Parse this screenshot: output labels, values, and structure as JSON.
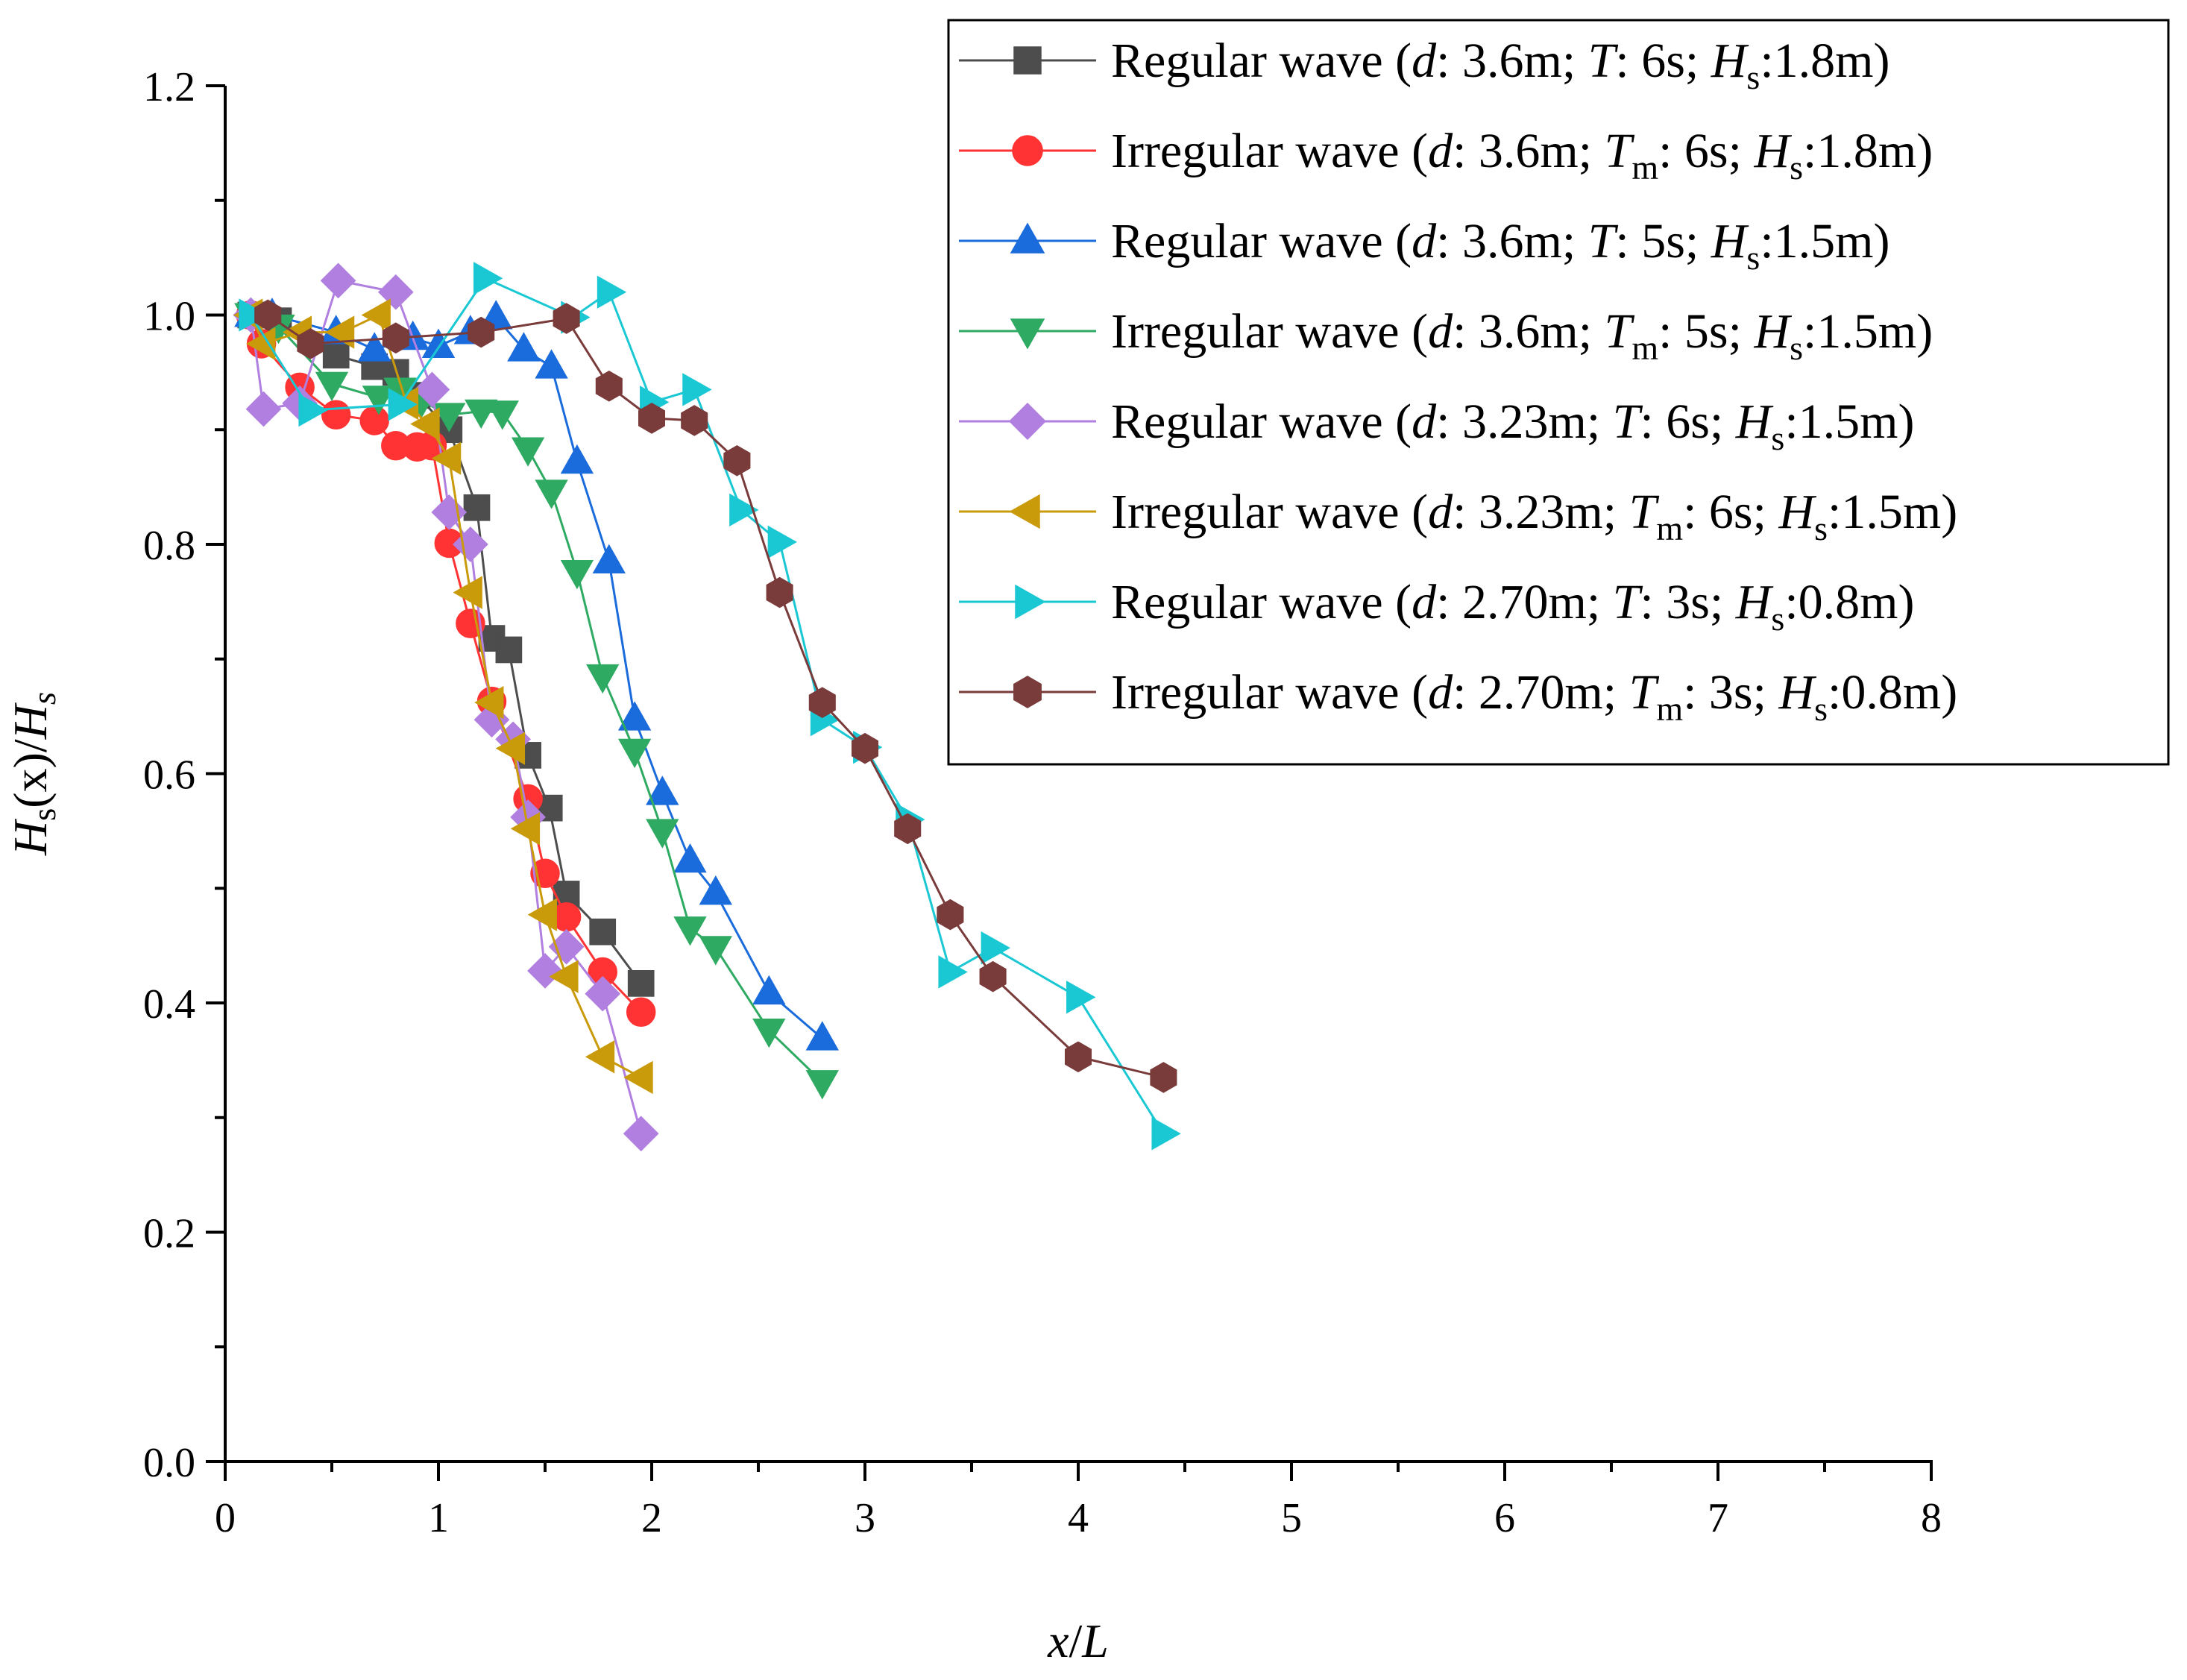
{
  "chart_data": {
    "type": "line",
    "title": "",
    "xlabel": {
      "main": "x",
      "sep": "/",
      "tail": "L"
    },
    "ylabel": {
      "h1": "H",
      "s1": "s",
      "mid": "(x)/",
      "h2": "H",
      "s2": "s"
    },
    "xlim": [
      0,
      8
    ],
    "ylim": [
      0,
      1.2
    ],
    "x_ticks": [
      0,
      1,
      2,
      3,
      4,
      5,
      6,
      7,
      8
    ],
    "x_tick_labels": [
      "0",
      "1",
      "2",
      "3",
      "4",
      "5",
      "6",
      "7",
      "8"
    ],
    "y_ticks": [
      0.0,
      0.2,
      0.4,
      0.6,
      0.8,
      1.0,
      1.2
    ],
    "y_tick_labels": [
      "0.0",
      "0.2",
      "0.4",
      "0.6",
      "0.8",
      "1.0",
      "1.2"
    ],
    "grid": false,
    "legend_position": "top-right",
    "series": [
      {
        "name": "Regular wave (d: 3.6m; T: 6s; Hs:1.8m)",
        "legend": {
          "a": "Regular wave (",
          "d": "d",
          "b": ": 3.6m; ",
          "t": "T",
          "tsub": "",
          "c": ": 6s; ",
          "h": "H",
          "hsub": "s",
          "e": ":1.8m)"
        },
        "color": "#4d4d4d",
        "marker": "square",
        "x": [
          0.12,
          0.25,
          0.52,
          0.7,
          0.8,
          0.9,
          1.05,
          1.18,
          1.25,
          1.33,
          1.42,
          1.52,
          1.6,
          1.77,
          1.95
        ],
        "y": [
          1.0,
          0.995,
          0.965,
          0.955,
          0.95,
          0.93,
          0.9,
          0.832,
          0.718,
          0.708,
          0.616,
          0.57,
          0.495,
          0.462,
          0.417
        ]
      },
      {
        "name": "Irregular wave (d: 3.6m; Tm: 6s; Hs:1.8m)",
        "legend": {
          "a": "Irregular wave (",
          "d": "d",
          "b": ": 3.6m; ",
          "t": "T",
          "tsub": "m",
          "c": ": 6s; ",
          "h": "H",
          "hsub": "s",
          "e": ":1.8m)"
        },
        "color": "#ff3333",
        "marker": "circle",
        "x": [
          0.12,
          0.17,
          0.35,
          0.52,
          0.7,
          0.8,
          0.9,
          0.97,
          1.05,
          1.15,
          1.25,
          1.42,
          1.5,
          1.6,
          1.77,
          1.95
        ],
        "y": [
          1.0,
          0.975,
          0.937,
          0.913,
          0.908,
          0.886,
          0.885,
          0.886,
          0.801,
          0.731,
          0.663,
          0.578,
          0.513,
          0.475,
          0.427,
          0.392
        ]
      },
      {
        "name": "Regular wave (d: 3.6m; T: 5s; Hs:1.5m)",
        "legend": {
          "a": "Regular wave (",
          "d": "d",
          "b": ": 3.6m; ",
          "t": "T",
          "tsub": "",
          "c": ": 5s; ",
          "h": "H",
          "hsub": "s",
          "e": ":1.5m)"
        },
        "color": "#1a6bdb",
        "marker": "triangle-up",
        "x": [
          0.12,
          0.22,
          0.52,
          0.7,
          0.88,
          1.0,
          1.15,
          1.27,
          1.4,
          1.53,
          1.65,
          1.8,
          1.92,
          2.05,
          2.18,
          2.3,
          2.55,
          2.8
        ],
        "y": [
          1.0,
          1.0,
          0.985,
          0.97,
          0.98,
          0.973,
          0.985,
          0.998,
          0.97,
          0.955,
          0.872,
          0.785,
          0.648,
          0.583,
          0.524,
          0.496,
          0.409,
          0.369
        ]
      },
      {
        "name": "Irregular wave (d: 3.6m; Tm: 5s; Hs:1.5m)",
        "legend": {
          "a": "Irregular wave (",
          "d": "d",
          "b": ": 3.6m; ",
          "t": "T",
          "tsub": "m",
          "c": ": 5s; ",
          "h": "H",
          "hsub": "s",
          "e": ":1.5m)"
        },
        "color": "#2eaa62",
        "marker": "triangle-down",
        "x": [
          0.12,
          0.25,
          0.5,
          0.72,
          0.82,
          0.92,
          1.05,
          1.2,
          1.3,
          1.42,
          1.53,
          1.65,
          1.77,
          1.92,
          2.05,
          2.18,
          2.3,
          2.55,
          2.8
        ],
        "y": [
          1.0,
          0.99,
          0.94,
          0.928,
          0.935,
          0.925,
          0.913,
          0.916,
          0.915,
          0.883,
          0.846,
          0.776,
          0.685,
          0.62,
          0.55,
          0.465,
          0.448,
          0.376,
          0.331
        ]
      },
      {
        "name": "Regular wave (d: 3.23m; T: 6s; Hs:1.5m)",
        "legend": {
          "a": "Regular wave (",
          "d": "d",
          "b": ": 3.23m; ",
          "t": "T",
          "tsub": "",
          "c": ": 6s; ",
          "h": "H",
          "hsub": "s",
          "e": ":1.5m)"
        },
        "color": "#b07fe0",
        "marker": "diamond",
        "x": [
          0.12,
          0.18,
          0.35,
          0.53,
          0.8,
          0.97,
          1.05,
          1.15,
          1.25,
          1.35,
          1.42,
          1.5,
          1.6,
          1.77,
          1.95
        ],
        "y": [
          1.0,
          0.918,
          0.923,
          1.03,
          1.02,
          0.935,
          0.828,
          0.8,
          0.647,
          0.63,
          0.562,
          0.428,
          0.449,
          0.408,
          0.286
        ]
      },
      {
        "name": "Irregular wave (d: 3.23m; Tm: 6s; Hs:1.5m)",
        "legend": {
          "a": "Irregular wave (",
          "d": "d",
          "b": ": 3.23m; ",
          "t": "T",
          "tsub": "m",
          "c": ": 6s; ",
          "h": "H",
          "hsub": "s",
          "e": ":1.5m)"
        },
        "color": "#c99a0a",
        "marker": "triangle-left",
        "x": [
          0.12,
          0.18,
          0.35,
          0.55,
          0.72,
          0.85,
          0.95,
          1.05,
          1.15,
          1.25,
          1.35,
          1.42,
          1.5,
          1.6,
          1.77,
          1.95
        ],
        "y": [
          1.0,
          0.975,
          0.985,
          0.985,
          1.0,
          0.923,
          0.905,
          0.875,
          0.758,
          0.662,
          0.622,
          0.552,
          0.477,
          0.423,
          0.353,
          0.335
        ]
      },
      {
        "name": "Regular wave (d: 2.70m; T: 3s; Hs:0.8m)",
        "legend": {
          "a": "Regular wave (",
          "d": "d",
          "b": ": 2.70m; ",
          "t": "T",
          "tsub": "",
          "c": ": 3s; ",
          "h": "H",
          "hsub": "s",
          "e": ":0.8m)"
        },
        "color": "#1ac8d4",
        "marker": "triangle-right",
        "x": [
          0.12,
          0.4,
          0.82,
          1.22,
          1.63,
          1.8,
          2.0,
          2.2,
          2.42,
          2.6,
          2.8,
          3.0,
          3.2,
          3.4,
          3.6,
          4.0,
          4.4
        ],
        "y": [
          1.0,
          0.917,
          0.922,
          1.032,
          0.998,
          1.02,
          0.924,
          0.935,
          0.83,
          0.802,
          0.647,
          0.623,
          0.56,
          0.427,
          0.448,
          0.405,
          0.286
        ]
      },
      {
        "name": "Irregular wave (d: 2.70m; Tm: 3s; Hs:0.8m)",
        "legend": {
          "a": "Irregular wave (",
          "d": "d",
          "b": ": 2.70m; ",
          "t": "T",
          "tsub": "m",
          "c": ": 3s; ",
          "h": "H",
          "hsub": "s",
          "e": ":0.8m)"
        },
        "color": "#7a3b3b",
        "marker": "hexagon",
        "x": [
          0.2,
          0.4,
          0.8,
          1.2,
          1.6,
          1.8,
          2.0,
          2.2,
          2.4,
          2.6,
          2.8,
          3.0,
          3.2,
          3.4,
          3.6,
          4.0,
          4.4
        ],
        "y": [
          1.0,
          0.975,
          0.98,
          0.985,
          0.997,
          0.938,
          0.91,
          0.908,
          0.873,
          0.758,
          0.662,
          0.622,
          0.552,
          0.477,
          0.423,
          0.353,
          0.335
        ]
      }
    ]
  }
}
